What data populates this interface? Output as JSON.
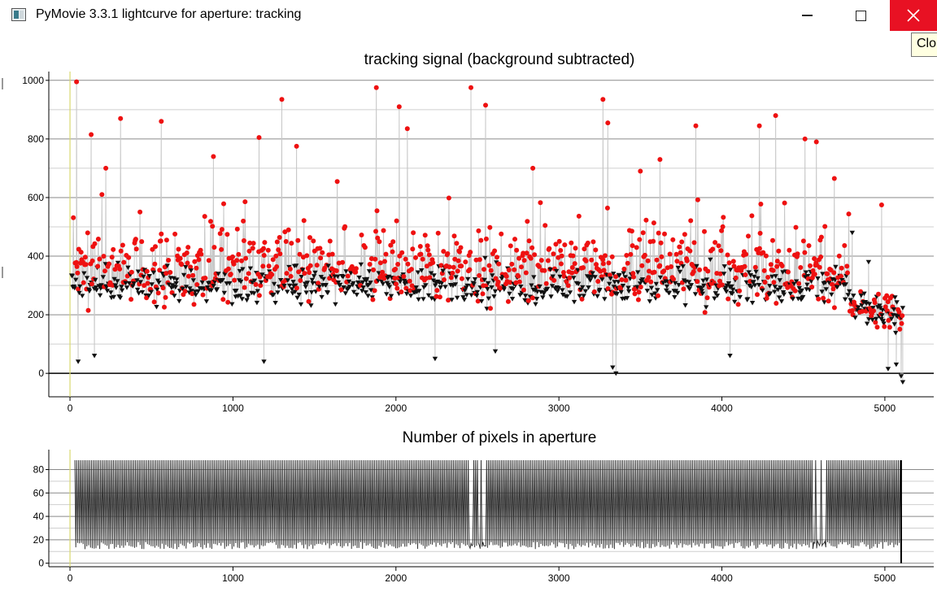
{
  "window": {
    "title": "PyMovie 3.3.1 lightcurve for aperture: tracking",
    "icon": "pymovie-app-icon",
    "buttons": {
      "minimize": "minimize-icon",
      "maximize": "maximize-icon",
      "close": "close-icon"
    },
    "tooltip": "Clo",
    "close_color": "#e81123"
  },
  "chart_data": [
    {
      "type": "scatter",
      "title": "tracking signal (background subtracted)",
      "xlabel": "",
      "ylabel": "",
      "xlim": [
        -130,
        5300
      ],
      "ylim": [
        -80,
        1030
      ],
      "xticks": [
        0,
        1000,
        2000,
        3000,
        4000,
        5000
      ],
      "yticks": [
        0,
        200,
        400,
        600,
        800,
        1000
      ],
      "grid": true,
      "connecting_line_color": "#c8c8c8",
      "series": [
        {
          "marker": "circle",
          "color": "#ee1111",
          "note_frames": "even",
          "x": [
            40,
            310,
            1300,
            1880,
            2020,
            2460,
            2550,
            3270,
            3300,
            4330,
            4230,
            4510,
            4580,
            4980,
            130,
            560,
            2070,
            1160,
            1390,
            3840,
            3620,
            880,
            220,
            4690,
            3500,
            2840
          ],
          "y": [
            995,
            870,
            935,
            975,
            910,
            975,
            915,
            935,
            855,
            880,
            845,
            800,
            790,
            575,
            815,
            860,
            835,
            805,
            775,
            845,
            730,
            740,
            700,
            665,
            690,
            700
          ]
        },
        {
          "marker": "triangle-down",
          "color": "#111111",
          "note_frames": "odd",
          "x": [
            50,
            150,
            1190,
            2240,
            2610,
            3330,
            3350,
            4050,
            4800,
            5020,
            5070,
            5100,
            5110,
            4900
          ],
          "y": [
            40,
            60,
            40,
            50,
            75,
            20,
            0,
            60,
            480,
            15,
            30,
            -10,
            -30,
            380
          ]
        }
      ],
      "bulk": {
        "x_range": [
          10,
          5110
        ],
        "y_typical": [
          150,
          600
        ]
      }
    },
    {
      "type": "line",
      "title": "Number of pixels in aperture",
      "xlabel": "",
      "ylabel": "",
      "xlim": [
        -130,
        5300
      ],
      "ylim": [
        -3,
        97
      ],
      "xticks": [
        0,
        1000,
        2000,
        3000,
        4000,
        5000
      ],
      "yticks": [
        0,
        20,
        40,
        60,
        80
      ],
      "grid": true,
      "series": [
        {
          "color": "#333333",
          "values_alternate": [
            88,
            12
          ]
        }
      ]
    }
  ]
}
